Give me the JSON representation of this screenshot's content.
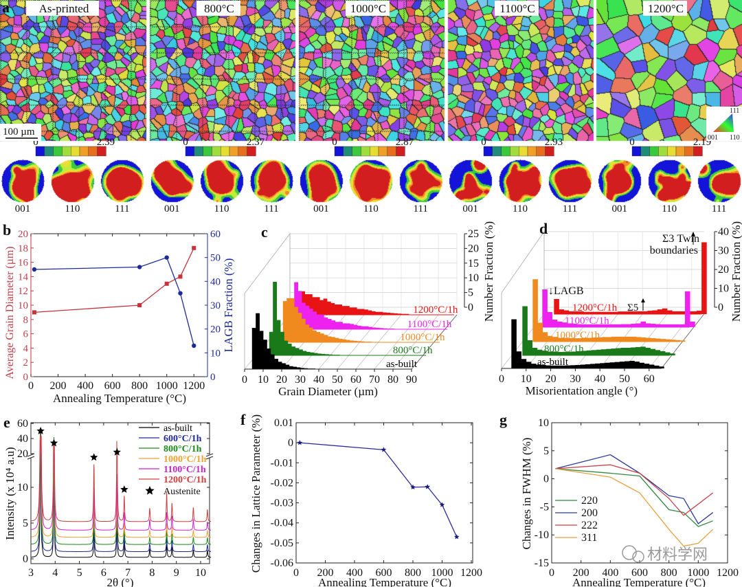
{
  "panel_a": {
    "label": "a",
    "maps": [
      {
        "title": "As-printed",
        "cbar_max": "2.39"
      },
      {
        "title": "800°C",
        "cbar_max": "2.37"
      },
      {
        "title": "1000°C",
        "cbar_max": "2.87"
      },
      {
        "title": "1100°C",
        "cbar_max": "2.93"
      },
      {
        "title": "1200°C",
        "cbar_max": "2.19"
      }
    ],
    "cbar_min": "0",
    "cbar_colors": [
      "#1414d8",
      "#1e8c78",
      "#3cc83c",
      "#a0dc3c",
      "#e6dc32",
      "#f0a028",
      "#e66e1e",
      "#d21e1e"
    ],
    "scale_bar": "100 µm",
    "pole_labels": [
      "001",
      "110",
      "111"
    ],
    "ipf": {
      "top": "111",
      "left": "001",
      "right": "110"
    }
  },
  "chart_data": [
    {
      "panel": "b",
      "type": "line",
      "xlabel": "Annealing Temperature  (°C)",
      "ylabel": "Average Grain Diameter (µm)",
      "y2label": "LAGB Fraction (%)",
      "xlim": [
        0,
        1300
      ],
      "xticks": [
        0,
        200,
        400,
        600,
        800,
        1000,
        1200
      ],
      "ylim": [
        0,
        20
      ],
      "yticks": [
        0,
        2,
        4,
        6,
        8,
        10,
        12,
        14,
        16,
        18,
        20
      ],
      "y2lim": [
        0,
        60
      ],
      "y2ticks": [
        0,
        10,
        20,
        30,
        40,
        50,
        60
      ],
      "series": [
        {
          "axis": "left",
          "color": "#c8323c",
          "marker": "square",
          "x": [
            25,
            800,
            1000,
            1100,
            1200
          ],
          "y": [
            9,
            10,
            13,
            14,
            18
          ]
        },
        {
          "axis": "right",
          "color": "#1f2a9a",
          "marker": "circle",
          "x": [
            25,
            800,
            1000,
            1100,
            1200
          ],
          "y": [
            45,
            46,
            50,
            35,
            13
          ]
        }
      ]
    },
    {
      "panel": "c",
      "type": "bar",
      "layout": "3d waterfall histogram",
      "xlabel": "Grain Diameter (µm)",
      "ylabel": "Number Fraction (%)",
      "xlim": [
        0,
        90
      ],
      "xticks": [
        0,
        10,
        20,
        30,
        40,
        50,
        60,
        70,
        80,
        90
      ],
      "ylim": [
        0,
        25
      ],
      "yticks": [
        0,
        5,
        10,
        15,
        20,
        25
      ],
      "bin_start": 4,
      "bin_width": 2,
      "series": [
        {
          "name": "as-built",
          "color": "#000000",
          "values": [
            14,
            19,
            13,
            10,
            7,
            5,
            3.5,
            2.5,
            2,
            1.5,
            1,
            0.8,
            0.6,
            0.4,
            0.3,
            0.2,
            0.2,
            0.1,
            0.1,
            0.1
          ]
        },
        {
          "name": "800°C/1h",
          "color": "#1a7a1a",
          "values": [
            8,
            25,
            12,
            8,
            5,
            4,
            3,
            2.5,
            2,
            1.5,
            1.2,
            1,
            0.8,
            0.6,
            0.5,
            0.4,
            0.3,
            0.2,
            0.2,
            0.1
          ]
        },
        {
          "name": "1000°C/1h",
          "color": "#f08a1e",
          "values": [
            14,
            15,
            15,
            12,
            10,
            8,
            6,
            5,
            4,
            3.5,
            3,
            2.5,
            2,
            1.8,
            1.5,
            1.2,
            1,
            0.8,
            0.6,
            0.5,
            0.4,
            0.3,
            0.2,
            0.2,
            0.1
          ]
        },
        {
          "name": "1100°C/1h",
          "color": "#ee22ee",
          "values": [
            9,
            16,
            13,
            9,
            8,
            7,
            6,
            5,
            5,
            4,
            3.5,
            3,
            2.5,
            2.5,
            2,
            2,
            1.8,
            1.5,
            1.2,
            1,
            1,
            0.8,
            0.6,
            0.5,
            0.4,
            0.3,
            0.2,
            0.2
          ]
        },
        {
          "name": "1200°C/1h",
          "color": "#e81414",
          "values": [
            6,
            8,
            7,
            7,
            6,
            6,
            5,
            5.5,
            4.5,
            4,
            3.5,
            3.5,
            3,
            3,
            2.5,
            2.5,
            2,
            2,
            1.8,
            1.5,
            1.2,
            1,
            1,
            0.8,
            0.7,
            0.6,
            0.5,
            0.4,
            0.3,
            0.3
          ]
        }
      ]
    },
    {
      "panel": "d",
      "type": "bar",
      "layout": "3d waterfall histogram",
      "xlabel": "Misorientation angle (°)",
      "ylabel": "Number Fraction (%)",
      "xlim": [
        0,
        65
      ],
      "xticks": [
        0,
        10,
        20,
        30,
        40,
        50,
        60
      ],
      "ylim": [
        0,
        40
      ],
      "yticks": [
        0,
        10,
        20,
        30,
        40
      ],
      "bin_start": 4,
      "bin_width": 2,
      "annotations": {
        "lagb": "↓LAGB",
        "sigma5": "Σ5",
        "sigma3_line1": "Σ3 Twin",
        "sigma3_line2": "boundaries"
      },
      "series": [
        {
          "name": "as-built",
          "color": "#000000",
          "values": [
            26,
            9,
            5,
            3.5,
            2.5,
            2,
            1.8,
            1.6,
            1.5,
            1.5,
            1.5,
            1.6,
            1.7,
            1.8,
            2,
            2.2,
            2.4,
            2.6,
            2.8,
            3,
            3.2,
            3.4,
            3.6,
            3.8,
            4,
            3.6,
            3,
            2.5,
            2,
            1.5,
            1
          ]
        },
        {
          "name": "800°C/1h",
          "color": "#1a7a1a",
          "values": [
            26,
            8,
            4,
            3,
            2.5,
            2,
            2,
            1.8,
            1.8,
            1.8,
            2,
            2.2,
            2.4,
            2.6,
            2.8,
            3,
            3.2,
            3.4,
            3.6,
            3.8,
            4,
            4,
            4.2,
            4.4,
            4.6,
            4,
            3.4,
            2.8,
            2.2,
            1.6,
            1
          ]
        },
        {
          "name": "1000°C/1h",
          "color": "#f08a1e",
          "values": [
            33,
            10,
            5,
            3,
            2.5,
            2,
            2,
            1.8,
            1.8,
            1.8,
            2,
            2,
            2.2,
            2.2,
            2.4,
            2.4,
            2.6,
            2.6,
            2.6,
            2.6,
            2.6,
            2.4,
            2.2,
            2,
            1.8,
            1.6,
            1.4,
            1.2,
            1,
            0.8,
            0.6
          ]
        },
        {
          "name": "1100°C/1h",
          "color": "#ee22ee",
          "values": [
            20,
            8,
            4,
            3,
            2.5,
            2,
            1.8,
            1.6,
            1.5,
            1.5,
            1.5,
            1.5,
            1.5,
            1.5,
            1.5,
            1.5,
            1.6,
            1.6,
            1.8,
            2,
            3,
            2,
            1.8,
            1.6,
            1.5,
            1.5,
            1.5,
            1.5,
            1.5,
            19,
            3
          ]
        },
        {
          "name": "1200°C/1h",
          "color": "#e81414",
          "values": [
            8,
            2.5,
            2,
            1.5,
            1.5,
            1.5,
            1.2,
            1.2,
            1.2,
            1.2,
            1.2,
            1.2,
            1.2,
            1.4,
            1.4,
            1.5,
            1.5,
            1.5,
            1.5,
            1.8,
            2,
            2.5,
            3,
            2,
            1.5,
            1.5,
            1.5,
            1.5,
            1.5,
            1.8,
            38
          ]
        }
      ]
    },
    {
      "panel": "e",
      "type": "line",
      "xlabel": "2θ (°)",
      "ylabel": "Intensity (x 10⁴ a.u)",
      "xlim": [
        3,
        10.45
      ],
      "xticks": [
        3,
        4,
        5,
        6,
        7,
        8,
        9,
        10
      ],
      "ylim_lower": [
        -0.7,
        18
      ],
      "yticks_lower": [
        0,
        5,
        10
      ],
      "ylim_upper": [
        20,
        60
      ],
      "yticks_upper": [
        20,
        40,
        60
      ],
      "axis_break": true,
      "peak_positions": [
        3.4,
        3.95,
        5.6,
        6.55,
        6.85,
        7.9,
        8.6,
        8.82,
        9.7,
        10.28
      ],
      "series": [
        {
          "name": "as-built",
          "color": "#000000",
          "baseline": 0.2,
          "peak_heights": [
            18,
            12,
            4,
            5,
            2.5,
            1.2,
            1.8,
            1.5,
            1,
            1
          ]
        },
        {
          "name": "600°C/1h",
          "color": "#1f2a9a",
          "baseline": 1,
          "peak_heights": [
            22,
            13,
            5,
            6,
            2.5,
            1.2,
            2,
            1.6,
            1,
            1
          ]
        },
        {
          "name": "800°C/1h",
          "color": "#1a8a1a",
          "baseline": 2,
          "peak_heights": [
            25,
            15,
            5,
            7,
            2.5,
            1,
            2,
            1.5,
            1,
            1
          ]
        },
        {
          "name": "1000°C/1h",
          "color": "#f0a030",
          "baseline": 3,
          "peak_heights": [
            30,
            18,
            5,
            6,
            2,
            1,
            2,
            1.5,
            1,
            1
          ]
        },
        {
          "name": "1100°C/1h",
          "color": "#cc22cc",
          "baseline": 4,
          "peak_heights": [
            38,
            21,
            6,
            8,
            2.5,
            1.5,
            2.5,
            2,
            1.5,
            1.2
          ]
        },
        {
          "name": "1200°C/1h",
          "color": "#d23c3c",
          "baseline": 5.2,
          "peak_heights": [
            40,
            22,
            8,
            13.5,
            3.6,
            1.9,
            4.1,
            2.6,
            2,
            1.7
          ]
        }
      ],
      "marker_legend": "Austenite",
      "austenite_peaks": [
        {
          "x": 3.4,
          "y": 50
        },
        {
          "x": 3.95,
          "y": 34
        },
        {
          "x": 5.6,
          "y": 14.2
        },
        {
          "x": 6.55,
          "y": 22
        },
        {
          "x": 6.85,
          "y": 9.7
        }
      ]
    },
    {
      "panel": "f",
      "type": "line",
      "xlabel": "Annealing Temperature  (°C)",
      "ylabel": "Changes in Lattice Parameter (%)",
      "xlim": [
        0,
        1200
      ],
      "xticks": [
        0,
        200,
        400,
        600,
        800,
        1000,
        1200
      ],
      "ylim": [
        -0.06,
        0.01
      ],
      "yticks": [
        0.01,
        0,
        -0.01,
        -0.02,
        -0.03,
        -0.04,
        -0.05,
        -0.06
      ],
      "series": [
        {
          "color": "#2a2aa0",
          "marker": "star",
          "x": [
            25,
            600,
            800,
            900,
            1000,
            1100
          ],
          "y": [
            0,
            -0.0035,
            -0.0222,
            -0.022,
            -0.031,
            -0.047
          ]
        }
      ]
    },
    {
      "panel": "g",
      "type": "line",
      "xlabel": "Annealing Temperature  (°C)",
      "ylabel": "Changes in FWHM (%)",
      "xlim": [
        0,
        1200
      ],
      "xticks": [
        0,
        200,
        400,
        600,
        800,
        1000,
        1200
      ],
      "ylim": [
        -15,
        10
      ],
      "yticks": [
        10,
        5,
        0,
        -5,
        -10,
        -15
      ],
      "x": [
        25,
        400,
        600,
        800,
        900,
        1000,
        1100
      ],
      "series": [
        {
          "name": "220",
          "color": "#2e8b3e",
          "y": [
            1.8,
            1,
            0.5,
            -5.5,
            -6,
            -8.5,
            -7.5
          ]
        },
        {
          "name": "200",
          "color": "#2b3a9a",
          "y": [
            1.8,
            4.3,
            1,
            -3,
            -3.5,
            -8,
            -6
          ]
        },
        {
          "name": "222",
          "color": "#c8424a",
          "y": [
            1.8,
            2.5,
            1,
            -3.5,
            -6.5,
            -4.5,
            -2.5
          ]
        },
        {
          "name": "311",
          "color": "#e8a040",
          "y": [
            1.8,
            0.3,
            -2.5,
            -9,
            -12,
            -11.5,
            -9
          ]
        }
      ]
    }
  ],
  "watermark": "材料学网"
}
